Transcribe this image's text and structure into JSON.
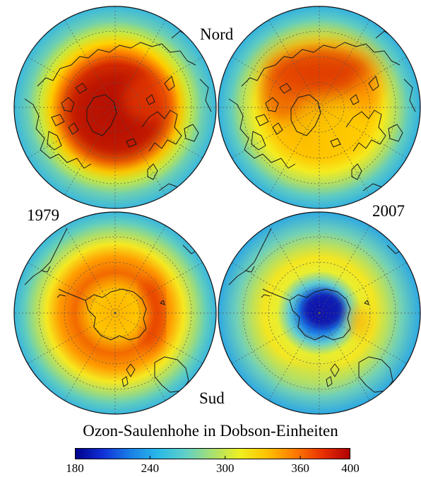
{
  "labels": {
    "north": "Nord",
    "south": "Sud",
    "year_left": "1979",
    "year_right": "2007"
  },
  "colorbar": {
    "title": "Ozon-Saulenhohe in Dobson-Einheiten",
    "min": 180,
    "max": 400,
    "ticks": [
      "180",
      "240",
      "300",
      "360",
      "400"
    ],
    "colors": [
      "#00008b",
      "#1030d8",
      "#1a7fe6",
      "#28b8e8",
      "#5fd0c8",
      "#a8e070",
      "#f0f020",
      "#ffc000",
      "#ff7a00",
      "#e83000",
      "#b00000"
    ]
  },
  "maps": [
    {
      "hemisphere": "Nord",
      "year": "1979",
      "min_ozone": 300,
      "max_ozone": 395
    },
    {
      "hemisphere": "Nord",
      "year": "2007",
      "min_ozone": 300,
      "max_ozone": 385
    },
    {
      "hemisphere": "Sud",
      "year": "1979",
      "min_ozone": 270,
      "max_ozone": 360
    },
    {
      "hemisphere": "Sud",
      "year": "2007",
      "min_ozone": 180,
      "max_ozone": 330
    }
  ]
}
